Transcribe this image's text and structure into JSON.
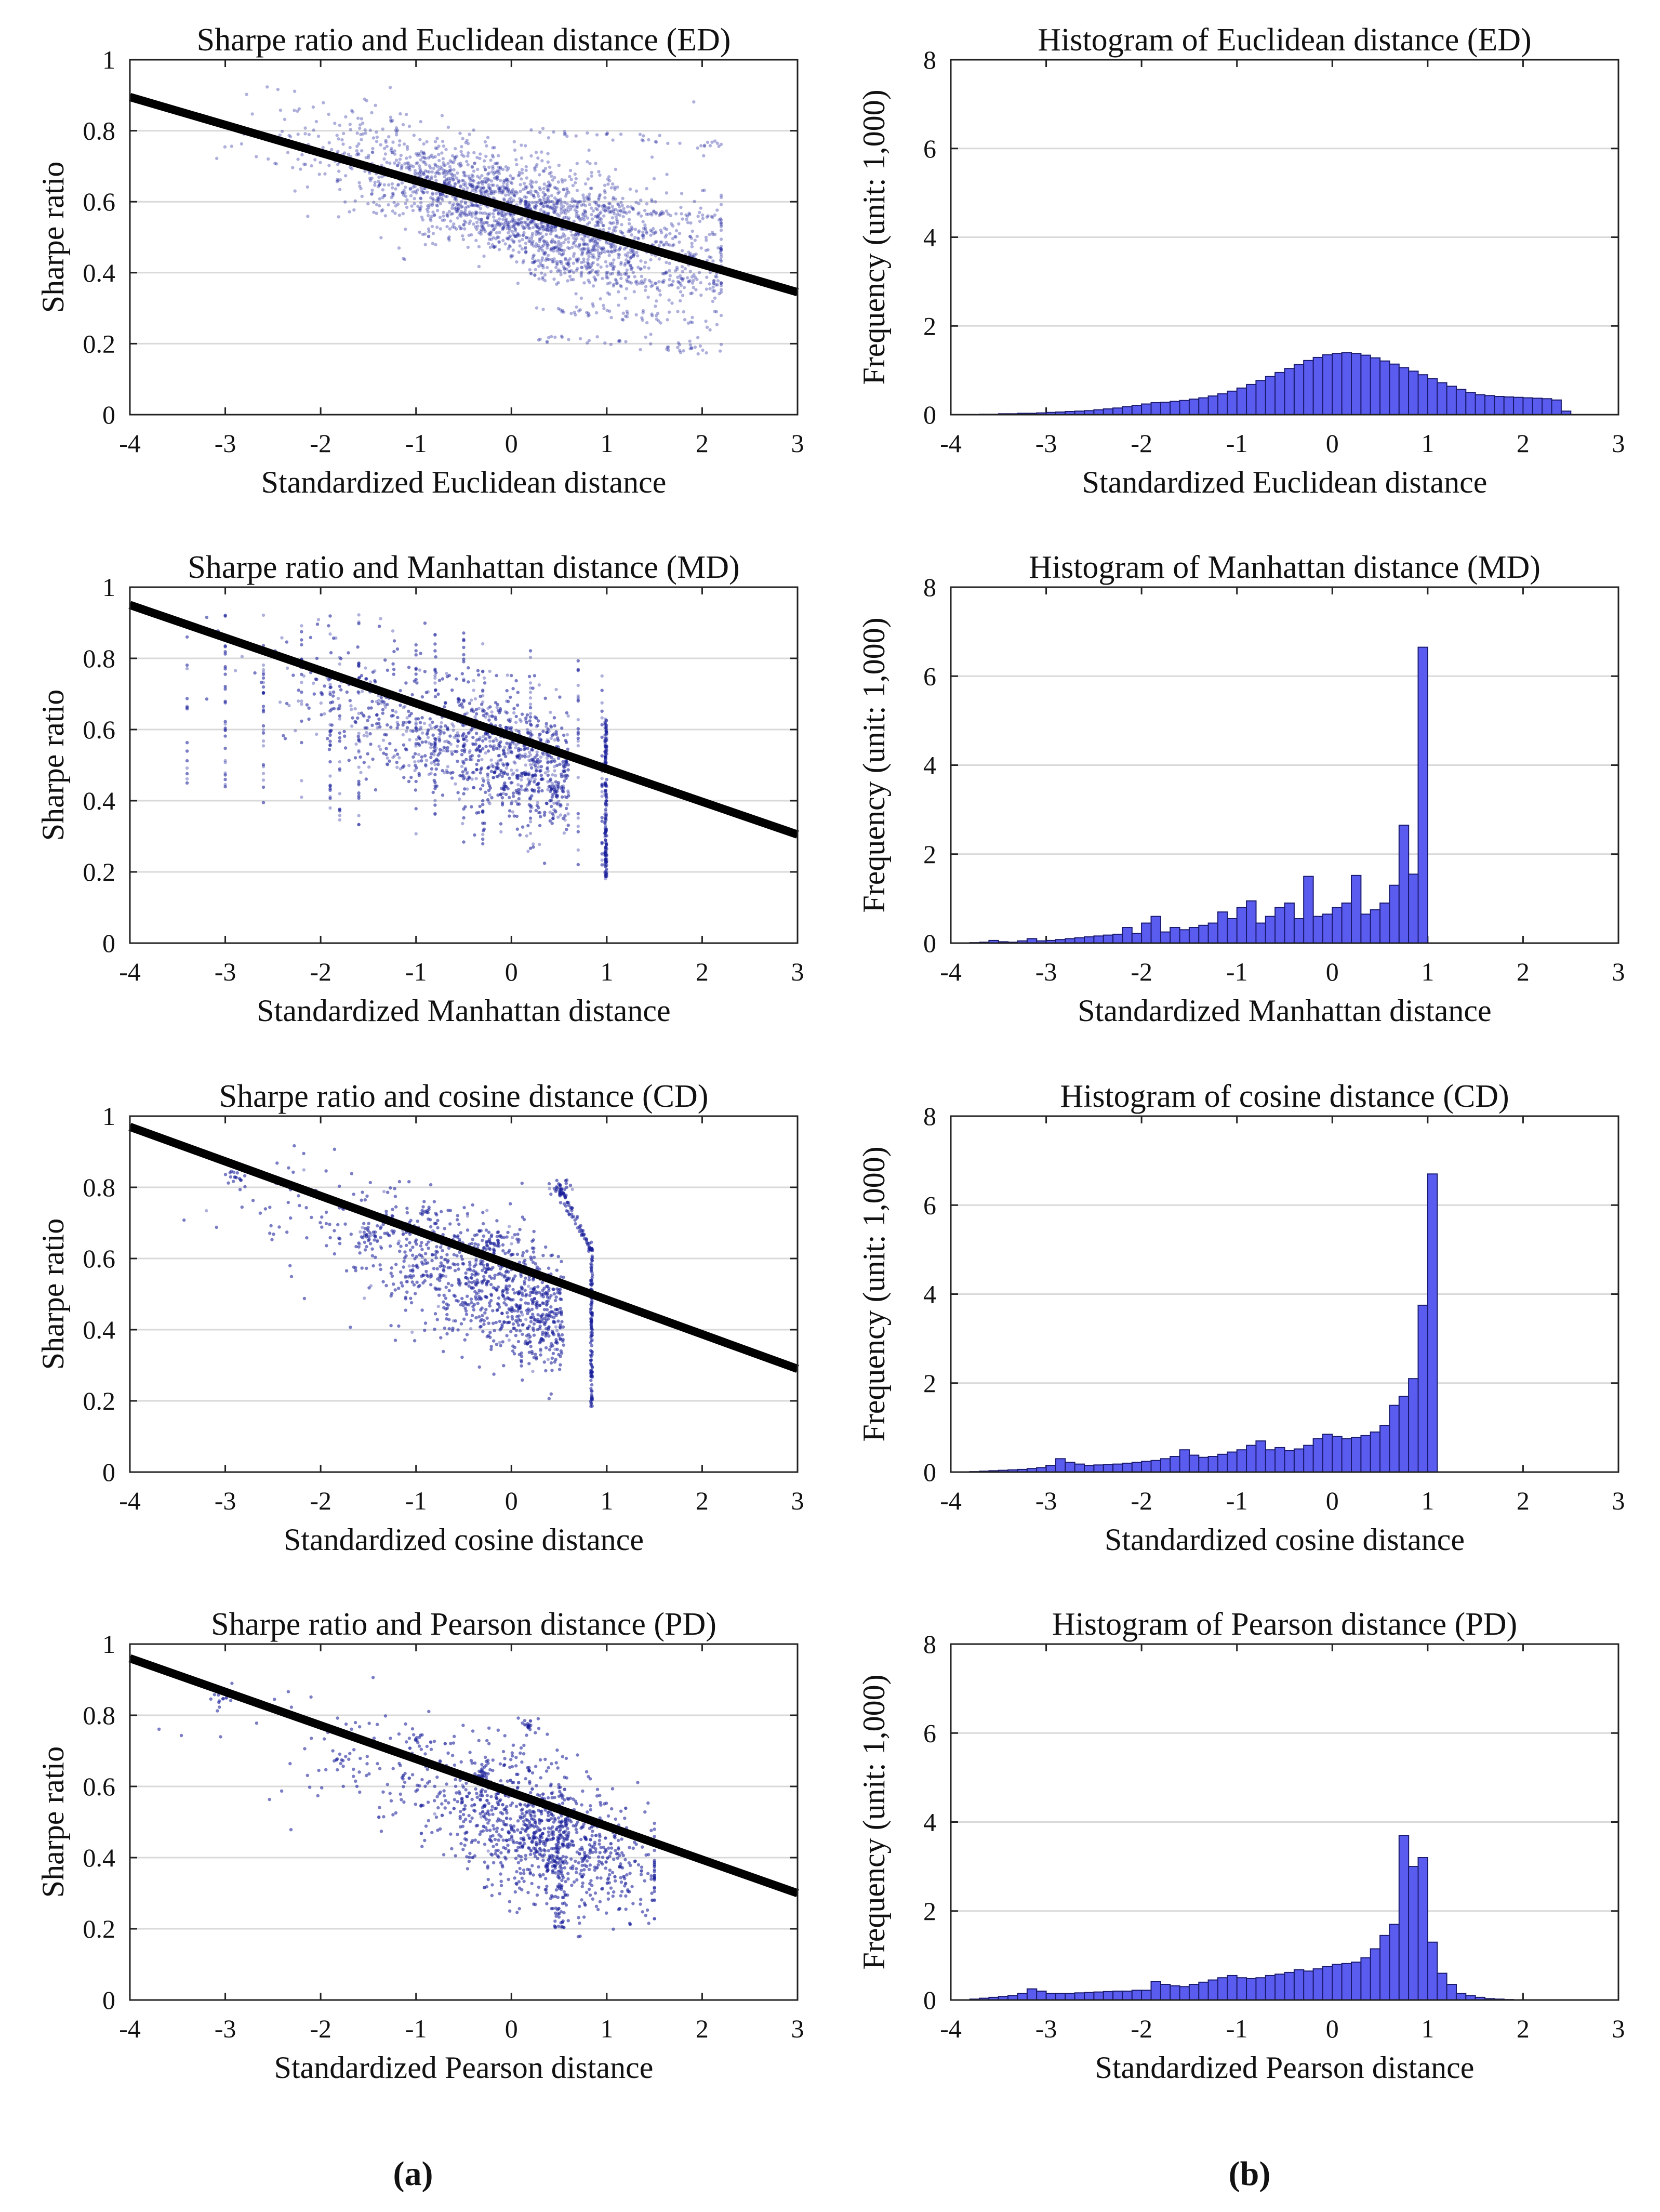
{
  "figure": {
    "panel_labels": [
      "(a)",
      "(b)"
    ]
  },
  "colors": {
    "scatter_points": "#1a1f9c",
    "regression_line": "#000000",
    "histogram_fill": "#5a5cf0",
    "histogram_edge": "#1a1a6e",
    "gridline": "#d9d9d9",
    "axis": "#222222"
  },
  "chart_data": [
    {
      "type": "scatter",
      "title": "Sharpe ratio and Euclidean distance (ED)",
      "xlabel": "Standardized Euclidean distance",
      "ylabel": "Sharpe ratio",
      "xlim": [
        -4,
        3
      ],
      "ylim": [
        0,
        1
      ],
      "xticks": [
        -4,
        -3,
        -2,
        -1,
        0,
        1,
        2,
        3
      ],
      "yticks": [
        0,
        0.2,
        0.4,
        0.6,
        0.8,
        1
      ],
      "ygrid": true,
      "regression_line": {
        "x": [
          -4,
          3
        ],
        "y": [
          0.895,
          0.345
        ]
      },
      "distribution": {
        "kind": "ed",
        "clip_max": 2.2,
        "streak_ys": [
          0.76,
          0.56,
          0.55,
          0.5,
          0.47,
          0.44,
          0.4,
          0.37,
          0.35,
          0.26,
          0.18
        ]
      }
    },
    {
      "type": "bar",
      "title": "Histogram of Euclidean distance (ED)",
      "xlabel": "Standardized Euclidean distance",
      "ylabel": "Frequency (unit: 1,000)",
      "xlim": [
        -4,
        3
      ],
      "ylim": [
        0,
        8
      ],
      "xticks": [
        -4,
        -3,
        -2,
        -1,
        0,
        1,
        2,
        3
      ],
      "yticks": [
        0,
        2,
        4,
        6,
        8
      ],
      "ygrid": true,
      "bin_start": -3.9,
      "bin_width": 0.1,
      "values": [
        0.0,
        0.0,
        0.01,
        0.01,
        0.02,
        0.02,
        0.03,
        0.03,
        0.04,
        0.05,
        0.06,
        0.07,
        0.08,
        0.09,
        0.11,
        0.13,
        0.15,
        0.18,
        0.21,
        0.24,
        0.27,
        0.28,
        0.3,
        0.32,
        0.35,
        0.38,
        0.42,
        0.47,
        0.53,
        0.6,
        0.68,
        0.77,
        0.86,
        0.95,
        1.04,
        1.13,
        1.22,
        1.29,
        1.35,
        1.38,
        1.4,
        1.38,
        1.34,
        1.28,
        1.21,
        1.14,
        1.06,
        0.98,
        0.9,
        0.81,
        0.72,
        0.64,
        0.57,
        0.5,
        0.45,
        0.43,
        0.41,
        0.4,
        0.39,
        0.38,
        0.37,
        0.36,
        0.33,
        0.08
      ]
    },
    {
      "type": "scatter",
      "title": "Sharpe ratio and Manhattan distance (MD)",
      "xlabel": "Standardized Manhattan distance",
      "ylabel": "Sharpe ratio",
      "xlim": [
        -4,
        3
      ],
      "ylim": [
        0,
        1
      ],
      "xticks": [
        -4,
        -3,
        -2,
        -1,
        0,
        1,
        2,
        3
      ],
      "yticks": [
        0,
        0.2,
        0.4,
        0.6,
        0.8,
        1
      ],
      "ygrid": true,
      "regression_line": {
        "x": [
          -4,
          3
        ],
        "y": [
          0.95,
          0.305
        ]
      },
      "distribution": {
        "kind": "md",
        "clip_max": 1.0,
        "stripe_xs": [
          -3.4,
          -3.0,
          -2.6,
          -2.2,
          -1.9,
          -1.8,
          -1.6,
          -1.0,
          -0.8,
          -0.5,
          -0.3,
          0.2,
          0.7,
          0.95
        ]
      }
    },
    {
      "type": "bar",
      "title": "Histogram of Manhattan distance (MD)",
      "xlabel": "Standardized Manhattan distance",
      "ylabel": "Frequency (unit: 1,000)",
      "xlim": [
        -4,
        3
      ],
      "ylim": [
        0,
        8
      ],
      "xticks": [
        -4,
        -3,
        -2,
        -1,
        0,
        1,
        2,
        3
      ],
      "yticks": [
        0,
        2,
        4,
        6,
        8
      ],
      "ygrid": true,
      "bin_start": -3.9,
      "bin_width": 0.1,
      "values": [
        0.0,
        0.01,
        0.02,
        0.06,
        0.03,
        0.02,
        0.05,
        0.1,
        0.05,
        0.06,
        0.08,
        0.1,
        0.12,
        0.14,
        0.16,
        0.18,
        0.2,
        0.35,
        0.22,
        0.45,
        0.6,
        0.25,
        0.35,
        0.3,
        0.35,
        0.4,
        0.45,
        0.7,
        0.55,
        0.8,
        0.95,
        0.45,
        0.6,
        0.8,
        0.9,
        0.55,
        1.5,
        0.6,
        0.65,
        0.8,
        0.9,
        1.52,
        0.65,
        0.75,
        0.9,
        1.3,
        2.65,
        1.55,
        6.65
      ]
    },
    {
      "type": "scatter",
      "title": "Sharpe ratio and cosine distance (CD)",
      "xlabel": "Standardized cosine distance",
      "ylabel": "Sharpe ratio",
      "xlim": [
        -4,
        3
      ],
      "ylim": [
        0,
        1
      ],
      "xticks": [
        -4,
        -3,
        -2,
        -1,
        0,
        1,
        2,
        3
      ],
      "yticks": [
        0,
        0.2,
        0.4,
        0.6,
        0.8,
        1
      ],
      "ygrid": true,
      "regression_line": {
        "x": [
          -4,
          3
        ],
        "y": [
          0.97,
          0.29
        ]
      },
      "distribution": {
        "kind": "cd",
        "clip_max": 0.85,
        "clumps": [
          [
            -2.9,
            0.84
          ],
          [
            -1.5,
            0.67
          ],
          [
            -0.9,
            0.73
          ],
          [
            -0.2,
            0.64
          ],
          [
            0.5,
            0.8
          ]
        ]
      }
    },
    {
      "type": "bar",
      "title": "Histogram of cosine distance (CD)",
      "xlabel": "Standardized cosine distance",
      "ylabel": "Frequency (unit: 1,000)",
      "xlim": [
        -4,
        3
      ],
      "ylim": [
        0,
        8
      ],
      "xticks": [
        -4,
        -3,
        -2,
        -1,
        0,
        1,
        2,
        3
      ],
      "yticks": [
        0,
        2,
        4,
        6,
        8
      ],
      "ygrid": true,
      "bin_start": -3.9,
      "bin_width": 0.1,
      "values": [
        0.0,
        0.01,
        0.02,
        0.03,
        0.04,
        0.05,
        0.06,
        0.08,
        0.1,
        0.15,
        0.3,
        0.22,
        0.18,
        0.15,
        0.16,
        0.17,
        0.18,
        0.2,
        0.22,
        0.24,
        0.26,
        0.3,
        0.35,
        0.5,
        0.38,
        0.33,
        0.35,
        0.4,
        0.45,
        0.5,
        0.6,
        0.7,
        0.5,
        0.55,
        0.48,
        0.52,
        0.6,
        0.75,
        0.85,
        0.8,
        0.75,
        0.78,
        0.82,
        0.9,
        1.05,
        1.5,
        1.7,
        2.1,
        3.75,
        6.7
      ]
    },
    {
      "type": "scatter",
      "title": "Sharpe ratio and Pearson distance (PD)",
      "xlabel": "Standardized Pearson distance",
      "ylabel": "Sharpe ratio",
      "xlim": [
        -4,
        3
      ],
      "ylim": [
        0,
        1
      ],
      "xticks": [
        -4,
        -3,
        -2,
        -1,
        0,
        1,
        2,
        3
      ],
      "yticks": [
        0,
        0.2,
        0.4,
        0.6,
        0.8,
        1
      ],
      "ygrid": true,
      "regression_line": {
        "x": [
          -4,
          3
        ],
        "y": [
          0.96,
          0.3
        ]
      },
      "distribution": {
        "kind": "pd",
        "clip_max": 1.5,
        "clumps": [
          [
            -3.0,
            0.84
          ],
          [
            -1.75,
            0.67
          ],
          [
            -1.0,
            0.73
          ],
          [
            -0.3,
            0.64
          ],
          [
            0.2,
            0.77
          ]
        ]
      }
    },
    {
      "type": "bar",
      "title": "Histogram of Pearson distance (PD)",
      "xlabel": "Standardized Pearson distance",
      "ylabel": "Frequency (unit: 1,000)",
      "xlim": [
        -4,
        3
      ],
      "ylim": [
        0,
        8
      ],
      "xticks": [
        -4,
        -3,
        -2,
        -1,
        0,
        1,
        2,
        3
      ],
      "yticks": [
        0,
        2,
        4,
        6,
        8
      ],
      "ygrid": true,
      "bin_start": -3.9,
      "bin_width": 0.1,
      "values": [
        0.0,
        0.02,
        0.04,
        0.06,
        0.08,
        0.1,
        0.15,
        0.25,
        0.2,
        0.15,
        0.15,
        0.15,
        0.16,
        0.17,
        0.18,
        0.19,
        0.2,
        0.2,
        0.22,
        0.22,
        0.42,
        0.35,
        0.32,
        0.3,
        0.35,
        0.4,
        0.45,
        0.5,
        0.55,
        0.5,
        0.48,
        0.5,
        0.55,
        0.58,
        0.62,
        0.68,
        0.65,
        0.7,
        0.75,
        0.8,
        0.82,
        0.85,
        0.95,
        1.15,
        1.45,
        1.7,
        3.7,
        3.0,
        3.2,
        1.3,
        0.6,
        0.35,
        0.15,
        0.1,
        0.06,
        0.03,
        0.02,
        0.01
      ]
    }
  ]
}
